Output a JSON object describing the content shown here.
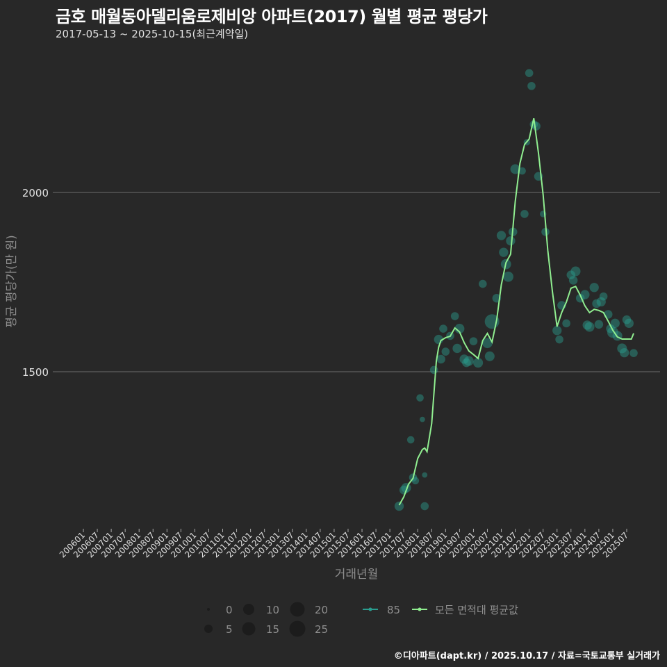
{
  "header": {
    "title": "금호 매월동아델리움로제비앙 아파트(2017) 월별 평균 평당가",
    "subtitle": "2017-05-13 ~ 2025-10-15(최근계약일)"
  },
  "footer": {
    "credit": "©디아파트(dapt.kr) / 2025.10.17 / 자료=국토교통부 실거래가"
  },
  "colors": {
    "background": "#282828",
    "grid": "#6b6b6b",
    "line": "#90ee90",
    "points": "#2a9d8f"
  },
  "legend": {
    "size_title": "",
    "sizes": [
      {
        "label": "0",
        "r": 2
      },
      {
        "label": "5",
        "r": 6
      },
      {
        "label": "10",
        "r": 8
      },
      {
        "label": "15",
        "r": 9.5
      },
      {
        "label": "20",
        "r": 10.5
      },
      {
        "label": "25",
        "r": 11.5
      }
    ],
    "series": [
      {
        "label": "85",
        "color": "#2a9d8f"
      },
      {
        "label": "모든 면적대 평균값",
        "color": "#90ee90"
      }
    ]
  },
  "chart_data": {
    "type": "line",
    "title": "금호 매월동아델리움로제비앙 아파트(2017) 월별 평균 평당가",
    "subtitle": "2017-05-13 ~ 2025-10-15(최근계약일)",
    "xlabel": "거래년월",
    "ylabel": "평균 평당가(만 원)",
    "yticks": [
      1500,
      2000
    ],
    "ylim": [
      1060,
      2360
    ],
    "xticks": [
      "200601",
      "200607",
      "200701",
      "200707",
      "200801",
      "200807",
      "200901",
      "200907",
      "201001",
      "201007",
      "201101",
      "201107",
      "201201",
      "201207",
      "201301",
      "201307",
      "201401",
      "201407",
      "201501",
      "201507",
      "201601",
      "201607",
      "201701",
      "201707",
      "201801",
      "201807",
      "201901",
      "201907",
      "202001",
      "202007",
      "202101",
      "202107",
      "202201",
      "202207",
      "202301",
      "202307",
      "202401",
      "202407",
      "202501",
      "202507"
    ],
    "grid": true,
    "legend_position": "bottom",
    "series": [
      {
        "name": "모든 면적대 평균값",
        "x": [
          "201705",
          "201707",
          "201709",
          "201711",
          "201801",
          "201803",
          "201804",
          "201805",
          "201807",
          "201809",
          "201810",
          "201811",
          "201901",
          "201903",
          "201905",
          "201907",
          "201909",
          "201911",
          "202001",
          "202003",
          "202005",
          "202007",
          "202009",
          "202011",
          "202101",
          "202103",
          "202105",
          "202107",
          "202109",
          "202111",
          "202201",
          "202203",
          "202205",
          "202207",
          "202209",
          "202211",
          "202301",
          "202303",
          "202305",
          "202307",
          "202309",
          "202311",
          "202401",
          "202403",
          "202405",
          "202407",
          "202409",
          "202411",
          "202501",
          "202503",
          "202505",
          "202507",
          "202509",
          "202510"
        ],
        "values": [
          1128,
          1151,
          1186,
          1203,
          1258,
          1283,
          1287,
          1277,
          1355,
          1529,
          1568,
          1587,
          1595,
          1599,
          1622,
          1611,
          1581,
          1558,
          1548,
          1537,
          1587,
          1607,
          1583,
          1645,
          1742,
          1804,
          1828,
          1975,
          2081,
          2134,
          2149,
          2207,
          2110,
          1994,
          1839,
          1723,
          1626,
          1665,
          1694,
          1733,
          1738,
          1713,
          1684,
          1665,
          1674,
          1671,
          1665,
          1641,
          1616,
          1597,
          1591,
          1591,
          1591,
          1607
        ]
      },
      {
        "name": "85",
        "type": "scatter",
        "points": [
          {
            "x": "201705",
            "y": 1125,
            "n": 6
          },
          {
            "x": "201707",
            "y": 1170,
            "n": 5
          },
          {
            "x": "201708",
            "y": 1176,
            "n": 7
          },
          {
            "x": "201710",
            "y": 1310,
            "n": 3
          },
          {
            "x": "201711",
            "y": 1205,
            "n": 4
          },
          {
            "x": "201712",
            "y": 1196,
            "n": 3
          },
          {
            "x": "201802",
            "y": 1427,
            "n": 3
          },
          {
            "x": "201803",
            "y": 1367,
            "n": 1
          },
          {
            "x": "201804",
            "y": 1212,
            "n": 1
          },
          {
            "x": "201804",
            "y": 1125,
            "n": 4
          },
          {
            "x": "201808",
            "y": 1505,
            "n": 4
          },
          {
            "x": "201810",
            "y": 1590,
            "n": 6
          },
          {
            "x": "201811",
            "y": 1535,
            "n": 5
          },
          {
            "x": "201812",
            "y": 1620,
            "n": 4
          },
          {
            "x": "201901",
            "y": 1556,
            "n": 4
          },
          {
            "x": "201903",
            "y": 1600,
            "n": 4
          },
          {
            "x": "201905",
            "y": 1655,
            "n": 4
          },
          {
            "x": "201906",
            "y": 1565,
            "n": 6
          },
          {
            "x": "201907",
            "y": 1620,
            "n": 7
          },
          {
            "x": "201909",
            "y": 1535,
            "n": 6
          },
          {
            "x": "201910",
            "y": 1525,
            "n": 5
          },
          {
            "x": "201911",
            "y": 1530,
            "n": 7
          },
          {
            "x": "202001",
            "y": 1585,
            "n": 4
          },
          {
            "x": "202003",
            "y": 1525,
            "n": 7
          },
          {
            "x": "202005",
            "y": 1745,
            "n": 4
          },
          {
            "x": "202007",
            "y": 1580,
            "n": 8
          },
          {
            "x": "202008",
            "y": 1543,
            "n": 7
          },
          {
            "x": "202009",
            "y": 1640,
            "n": 20
          },
          {
            "x": "202011",
            "y": 1705,
            "n": 5
          },
          {
            "x": "202101",
            "y": 1880,
            "n": 6
          },
          {
            "x": "202102",
            "y": 1833,
            "n": 6
          },
          {
            "x": "202103",
            "y": 1800,
            "n": 8
          },
          {
            "x": "202104",
            "y": 1765,
            "n": 8
          },
          {
            "x": "202105",
            "y": 1865,
            "n": 6
          },
          {
            "x": "202106",
            "y": 1890,
            "n": 5
          },
          {
            "x": "202107",
            "y": 2065,
            "n": 7
          },
          {
            "x": "202110",
            "y": 2060,
            "n": 3
          },
          {
            "x": "202111",
            "y": 1940,
            "n": 4
          },
          {
            "x": "202112",
            "y": 2140,
            "n": 2
          },
          {
            "x": "202201",
            "y": 2333,
            "n": 4
          },
          {
            "x": "202202",
            "y": 2297,
            "n": 4
          },
          {
            "x": "202203",
            "y": 2190,
            "n": 4
          },
          {
            "x": "202204",
            "y": 2185,
            "n": 5
          },
          {
            "x": "202205",
            "y": 2045,
            "n": 5
          },
          {
            "x": "202207",
            "y": 1940,
            "n": 2
          },
          {
            "x": "202208",
            "y": 1890,
            "n": 4
          },
          {
            "x": "202301",
            "y": 1615,
            "n": 6
          },
          {
            "x": "202302",
            "y": 1590,
            "n": 4
          },
          {
            "x": "202303",
            "y": 1685,
            "n": 5
          },
          {
            "x": "202305",
            "y": 1635,
            "n": 4
          },
          {
            "x": "202307",
            "y": 1770,
            "n": 5
          },
          {
            "x": "202308",
            "y": 1755,
            "n": 5
          },
          {
            "x": "202309",
            "y": 1780,
            "n": 7
          },
          {
            "x": "202311",
            "y": 1705,
            "n": 5
          },
          {
            "x": "202401",
            "y": 1715,
            "n": 6
          },
          {
            "x": "202402",
            "y": 1630,
            "n": 6
          },
          {
            "x": "202403",
            "y": 1625,
            "n": 7
          },
          {
            "x": "202405",
            "y": 1735,
            "n": 6
          },
          {
            "x": "202406",
            "y": 1690,
            "n": 5
          },
          {
            "x": "202407",
            "y": 1632,
            "n": 5
          },
          {
            "x": "202408",
            "y": 1695,
            "n": 6
          },
          {
            "x": "202409",
            "y": 1710,
            "n": 4
          },
          {
            "x": "202411",
            "y": 1660,
            "n": 5
          },
          {
            "x": "202412",
            "y": 1620,
            "n": 5
          },
          {
            "x": "202501",
            "y": 1610,
            "n": 10
          },
          {
            "x": "202502",
            "y": 1635,
            "n": 6
          },
          {
            "x": "202503",
            "y": 1600,
            "n": 7
          },
          {
            "x": "202505",
            "y": 1565,
            "n": 7
          },
          {
            "x": "202506",
            "y": 1553,
            "n": 6
          },
          {
            "x": "202507",
            "y": 1645,
            "n": 5
          },
          {
            "x": "202508",
            "y": 1635,
            "n": 6
          },
          {
            "x": "202510",
            "y": 1552,
            "n": 4
          }
        ]
      }
    ]
  },
  "axes": {
    "xlabel": "거래년월",
    "ylabel": "평균 평당가(만 원)"
  }
}
